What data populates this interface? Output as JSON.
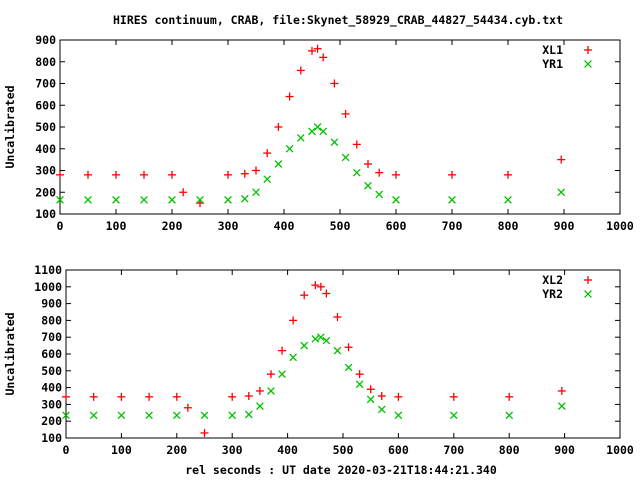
{
  "chart_data": {
    "type": "scatter",
    "title": "HIRES continuum, CRAB, file:Skynet_58929_CRAB_44827_54434.cyb.txt",
    "xlabel": "rel seconds : UT date 2020-03-21T18:44:21.340",
    "panels": [
      {
        "ylabel": "Uncalibrated",
        "xlim": [
          0,
          1000
        ],
        "ylim": [
          100,
          900
        ],
        "xticks": [
          "0",
          "100",
          "200",
          "300",
          "400",
          "500",
          "600",
          "700",
          "800",
          "900",
          "1000"
        ],
        "yticks": [
          "100",
          "200",
          "300",
          "400",
          "500",
          "600",
          "700",
          "800",
          "900"
        ],
        "series": [
          {
            "name": "XL1",
            "color": "#ff0000",
            "marker": "plus",
            "x": [
              0,
              50,
              100,
              150,
              200,
              220,
              250,
              300,
              330,
              350,
              370,
              390,
              410,
              430,
              450,
              460,
              470,
              490,
              510,
              530,
              550,
              570,
              600,
              700,
              800,
              895
            ],
            "y": [
              280,
              280,
              280,
              280,
              280,
              200,
              150,
              280,
              285,
              300,
              380,
              500,
              640,
              760,
              850,
              860,
              820,
              700,
              560,
              420,
              330,
              290,
              280,
              280,
              280,
              350
            ]
          },
          {
            "name": "YR1",
            "color": "#00c000",
            "marker": "cross",
            "x": [
              0,
              50,
              100,
              150,
              200,
              250,
              300,
              330,
              350,
              370,
              390,
              410,
              430,
              450,
              460,
              470,
              490,
              510,
              530,
              550,
              570,
              600,
              700,
              800,
              895
            ],
            "y": [
              165,
              165,
              165,
              165,
              165,
              165,
              165,
              170,
              200,
              260,
              330,
              400,
              450,
              480,
              500,
              480,
              430,
              360,
              290,
              230,
              190,
              165,
              165,
              165,
              200
            ]
          }
        ]
      },
      {
        "ylabel": "Uncalibrated",
        "xlim": [
          0,
          1000
        ],
        "ylim": [
          100,
          1100
        ],
        "xticks": [
          "0",
          "100",
          "200",
          "300",
          "400",
          "500",
          "600",
          "700",
          "800",
          "900",
          "1000"
        ],
        "yticks": [
          "100",
          "200",
          "300",
          "400",
          "500",
          "600",
          "700",
          "800",
          "900",
          "1000",
          "1100"
        ],
        "series": [
          {
            "name": "XL2",
            "color": "#ff0000",
            "marker": "plus",
            "x": [
              0,
              50,
              100,
              150,
              200,
              220,
              250,
              300,
              330,
              350,
              370,
              390,
              410,
              430,
              450,
              460,
              470,
              490,
              510,
              530,
              550,
              570,
              600,
              700,
              800,
              895
            ],
            "y": [
              345,
              345,
              345,
              345,
              345,
              280,
              130,
              345,
              350,
              380,
              480,
              620,
              800,
              950,
              1010,
              1000,
              960,
              820,
              640,
              480,
              390,
              350,
              345,
              345,
              345,
              380
            ]
          },
          {
            "name": "YR2",
            "color": "#00c000",
            "marker": "cross",
            "x": [
              0,
              50,
              100,
              150,
              200,
              250,
              300,
              330,
              350,
              370,
              390,
              410,
              430,
              450,
              460,
              470,
              490,
              510,
              530,
              550,
              570,
              600,
              700,
              800,
              895
            ],
            "y": [
              235,
              235,
              235,
              235,
              235,
              235,
              235,
              240,
              290,
              380,
              480,
              580,
              650,
              690,
              700,
              680,
              620,
              520,
              420,
              330,
              270,
              235,
              235,
              235,
              290
            ]
          }
        ]
      }
    ]
  }
}
